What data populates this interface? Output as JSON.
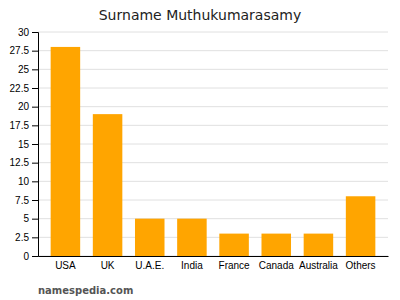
{
  "chart_data": {
    "type": "bar",
    "title": "Surname Muthukumarasamy",
    "categories": [
      "USA",
      "UK",
      "U.A.E.",
      "India",
      "France",
      "Canada",
      "Australia",
      "Others"
    ],
    "values": [
      28,
      19,
      5,
      5,
      3,
      3,
      3,
      8
    ],
    "color": "#FFA500",
    "ylim": [
      0,
      30
    ],
    "yticks": [
      0,
      2.5,
      5,
      7.5,
      10,
      12.5,
      15,
      17.5,
      20,
      22.5,
      25,
      27.5,
      30
    ],
    "grid": true,
    "annotations": [
      "namespedia.com"
    ]
  }
}
